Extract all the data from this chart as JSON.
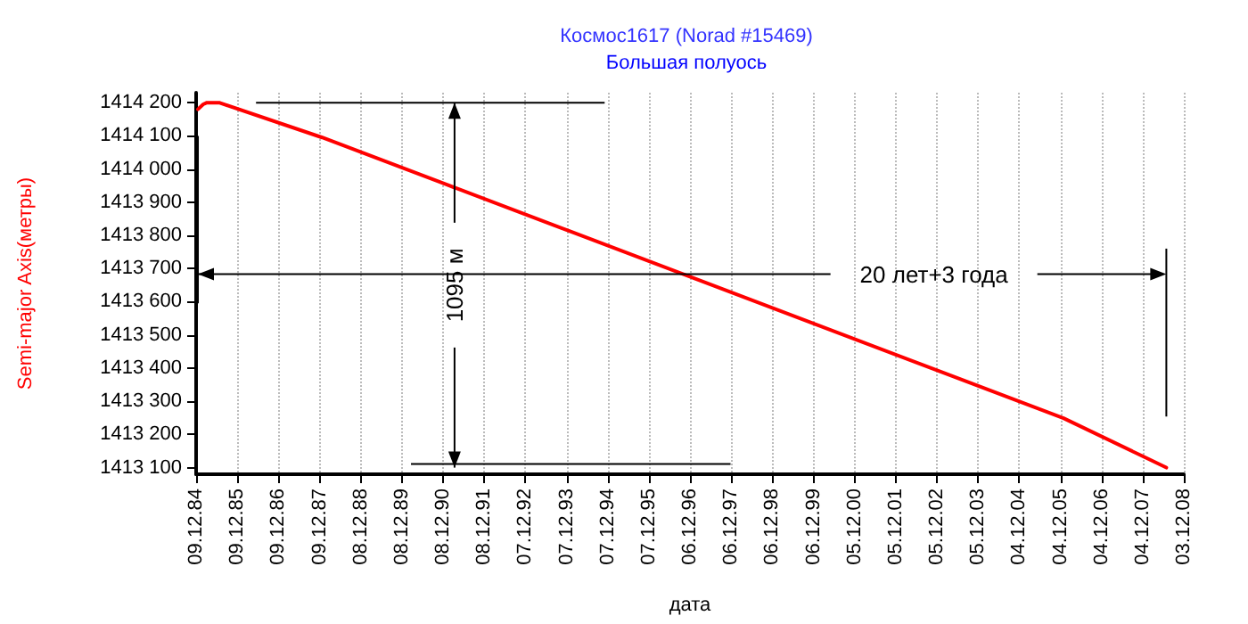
{
  "chart_data": {
    "type": "line",
    "title": "Космос1617 (Norad #15469)",
    "subtitle": "Большая полуось",
    "xlabel": "дата",
    "ylabel": "Semi-major Axis(метры)",
    "x": [
      "1984-12-25",
      "1985-02-10",
      "1985-03-15",
      "1985-07-01",
      "1988-01-01",
      "1991-01-01",
      "1994-01-01",
      "1997-01-01",
      "2000-01-01",
      "2003-01-01",
      "2006-01-01",
      "2008-07-01"
    ],
    "series": [
      {
        "color": "#ff0000",
        "values": [
          1414180,
          1414195,
          1414200,
          1414200,
          1414095,
          1413954,
          1413813,
          1413672,
          1413531,
          1413390,
          1413249,
          1413100
        ]
      }
    ],
    "xlim": [
      "1984-12-09",
      "2008-12-03"
    ],
    "xticks": [
      {
        "value": "1984-12-09",
        "label": "09.12.84"
      },
      {
        "value": "1985-12-09",
        "label": "09.12.85"
      },
      {
        "value": "1986-12-09",
        "label": "09.12.86"
      },
      {
        "value": "1987-12-09",
        "label": "09.12.87"
      },
      {
        "value": "1988-12-08",
        "label": "08.12.88"
      },
      {
        "value": "1989-12-08",
        "label": "08.12.89"
      },
      {
        "value": "1990-12-08",
        "label": "08.12.90"
      },
      {
        "value": "1991-12-08",
        "label": "08.12.91"
      },
      {
        "value": "1992-12-07",
        "label": "07.12.92"
      },
      {
        "value": "1993-12-07",
        "label": "07.12.93"
      },
      {
        "value": "1994-12-07",
        "label": "07.12.94"
      },
      {
        "value": "1995-12-07",
        "label": "07.12.95"
      },
      {
        "value": "1996-12-06",
        "label": "06.12.96"
      },
      {
        "value": "1997-12-06",
        "label": "06.12.97"
      },
      {
        "value": "1998-12-06",
        "label": "06.12.98"
      },
      {
        "value": "1999-12-06",
        "label": "06.12.99"
      },
      {
        "value": "2000-12-05",
        "label": "05.12.00"
      },
      {
        "value": "2001-12-05",
        "label": "05.12.01"
      },
      {
        "value": "2002-12-05",
        "label": "05.12.02"
      },
      {
        "value": "2003-12-05",
        "label": "05.12.03"
      },
      {
        "value": "2004-12-04",
        "label": "04.12.04"
      },
      {
        "value": "2005-12-04",
        "label": "04.12.05"
      },
      {
        "value": "2006-12-04",
        "label": "04.12.06"
      },
      {
        "value": "2007-12-04",
        "label": "04.12.07"
      },
      {
        "value": "2008-12-03",
        "label": "03.12.08"
      }
    ],
    "ylim": [
      1413080,
      1414230
    ],
    "yticks": [
      {
        "value": 1413100,
        "label": "1413 100"
      },
      {
        "value": 1413200,
        "label": "1413 200"
      },
      {
        "value": 1413300,
        "label": "1413 300"
      },
      {
        "value": 1413400,
        "label": "1413 400"
      },
      {
        "value": 1413500,
        "label": "1413 500"
      },
      {
        "value": 1413600,
        "label": "1413 600"
      },
      {
        "value": 1413700,
        "label": "1413 700"
      },
      {
        "value": 1413800,
        "label": "1413 800"
      },
      {
        "value": 1413900,
        "label": "1413 900"
      },
      {
        "value": 1414000,
        "label": "1414 000"
      },
      {
        "value": 1414100,
        "label": "1414 100"
      },
      {
        "value": 1414200,
        "label": "1414 200"
      }
    ],
    "annotations": [
      "1095 м",
      "20 лет+3 года"
    ],
    "grid": "x",
    "marker": "none",
    "line_style": "solid"
  }
}
